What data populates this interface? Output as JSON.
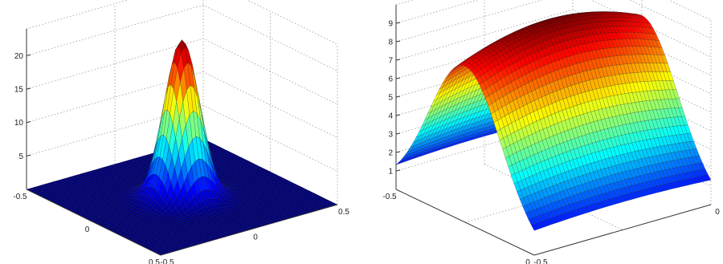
{
  "chart_data": [
    {
      "type": "surface",
      "title": "",
      "xlabel": "",
      "ylabel": "",
      "zlabel": "",
      "xlim": [
        -0.5,
        0.5
      ],
      "ylim": [
        -0.5,
        0.5
      ],
      "zlim": [
        0,
        24
      ],
      "x_ticks": [
        "-0.5",
        "0",
        "0.5"
      ],
      "y_ticks": [
        "-0.5",
        "0",
        "0.5"
      ],
      "z_ticks": [
        "5",
        "10",
        "15",
        "20"
      ],
      "z_tick_values": [
        5,
        10,
        15,
        20
      ],
      "surface": {
        "function": "gaussian",
        "peak_z": 23.5,
        "peak_at": [
          0,
          0
        ],
        "sigma_x": 0.08,
        "sigma_y": 0.08
      },
      "colormap": "jet",
      "grid": true
    },
    {
      "type": "surface",
      "title": "",
      "xlabel": "",
      "ylabel": "",
      "zlabel": "",
      "xlim": [
        -0.5,
        0
      ],
      "ylim": [
        -0.5,
        0
      ],
      "zlim": [
        0,
        10
      ],
      "x_ticks": [
        "-0.5",
        "0"
      ],
      "y_ticks": [
        "-0.5",
        "0"
      ],
      "z_ticks": [
        "1",
        "2",
        "3",
        "4",
        "5",
        "6",
        "7",
        "8",
        "9"
      ],
      "z_tick_values": [
        1,
        2,
        3,
        4,
        5,
        6,
        7,
        8,
        9
      ],
      "surface": {
        "function": "gaussian",
        "peak_z": 9.6,
        "peak_at": [
          -0.25,
          -0.25
        ],
        "sigma_x": 0.13,
        "sigma_y": 0.5
      },
      "colormap": "jet",
      "grid": true
    }
  ]
}
